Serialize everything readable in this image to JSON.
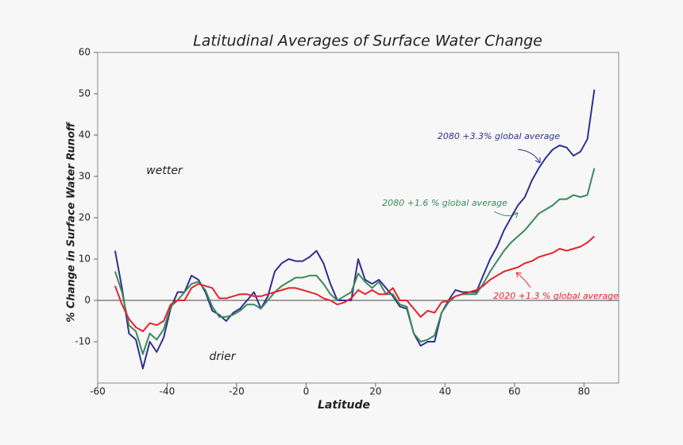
{
  "chart_data": {
    "type": "line",
    "title": "Latitudinal Averages of Surface Water Change",
    "xlabel": "Latitude",
    "ylabel": "% Change in Surface Water Runoff",
    "annotations": [
      "wetter",
      "drier"
    ],
    "x": [
      -55,
      -53,
      -51,
      -49,
      -47,
      -45,
      -43,
      -41,
      -39,
      -37,
      -35,
      -33,
      -31,
      -29,
      -27,
      -25,
      -23,
      -21,
      -19,
      -17,
      -15,
      -13,
      -11,
      -9,
      -7,
      -5,
      -3,
      -1,
      1,
      3,
      5,
      7,
      9,
      11,
      13,
      15,
      17,
      19,
      21,
      23,
      25,
      27,
      29,
      31,
      33,
      35,
      37,
      39,
      41,
      43,
      45,
      47,
      49,
      51,
      53,
      55,
      57,
      59,
      61,
      63,
      65,
      67,
      69,
      71,
      73,
      75,
      77,
      79,
      81,
      83
    ],
    "series": [
      {
        "name": "2080  +3.3% global average",
        "color": "#2e3192",
        "values": [
          12,
          3,
          -8,
          -9.5,
          -16.5,
          -10,
          -12.5,
          -9,
          -2,
          2,
          2,
          6,
          5,
          2,
          -2.5,
          -3.5,
          -5,
          -3,
          -2,
          0,
          2,
          -2,
          1,
          7,
          9,
          10,
          9.5,
          9.5,
          10.5,
          12,
          9,
          4,
          0,
          0,
          0,
          10,
          5,
          4,
          5,
          3,
          1,
          -1.5,
          -2,
          -8,
          -11,
          -10,
          -10,
          -3,
          0,
          2.5,
          2,
          2,
          2,
          6,
          10,
          13,
          17,
          20,
          23,
          25,
          29,
          32,
          34.5,
          36.5,
          37.5,
          37,
          35,
          36,
          39,
          51
        ]
      },
      {
        "name": "2080  +1.6 % global average",
        "color": "#3a8a5a",
        "values": [
          7,
          2,
          -6,
          -7.5,
          -13,
          -8,
          -9.5,
          -7,
          -1.5,
          0,
          2,
          4,
          4.5,
          2.5,
          -1.5,
          -4,
          -4,
          -3.5,
          -2.5,
          -1,
          -1,
          -2,
          0,
          2,
          3.5,
          4.5,
          5.5,
          5.5,
          6,
          6,
          4,
          1.5,
          0,
          1,
          2,
          6.5,
          4.5,
          3,
          4.5,
          1.5,
          1.5,
          -1,
          -1.5,
          -8,
          -10,
          -9.5,
          -8.5,
          -3,
          -0.5,
          1,
          1.5,
          1.5,
          1.5,
          4,
          7,
          9.5,
          12,
          14,
          15.5,
          17,
          19,
          21,
          22,
          23,
          24.5,
          24.5,
          25.5,
          25,
          25.5,
          32
        ]
      },
      {
        "name": "2020  +1.3 % global average",
        "color": "#e8212a",
        "values": [
          3.5,
          -1,
          -4.5,
          -6.5,
          -7.5,
          -5.5,
          -6,
          -5,
          -1,
          0,
          0,
          3,
          4,
          3.5,
          3,
          0.5,
          0.5,
          1,
          1.5,
          1.5,
          1,
          1,
          1.5,
          2,
          2.5,
          3,
          3,
          2.5,
          2,
          1.5,
          0.5,
          0,
          -1,
          -0.5,
          0.5,
          2.5,
          1.5,
          2.5,
          1.5,
          1.5,
          3,
          0,
          0,
          -2,
          -4,
          -2.5,
          -3,
          -0.5,
          0,
          1,
          1.5,
          2,
          2.5,
          3.5,
          5,
          6,
          7,
          7.5,
          8,
          9,
          9.5,
          10.5,
          11,
          11.5,
          12.5,
          12,
          12.5,
          13,
          14,
          15.5
        ]
      }
    ],
    "xlim": [
      -60,
      90
    ],
    "ylim": [
      -20,
      60
    ],
    "xticks": [
      -60,
      -40,
      -20,
      0,
      20,
      40,
      60,
      80
    ],
    "yticks": [
      -10,
      0,
      10,
      20,
      30,
      40,
      50,
      60
    ]
  }
}
